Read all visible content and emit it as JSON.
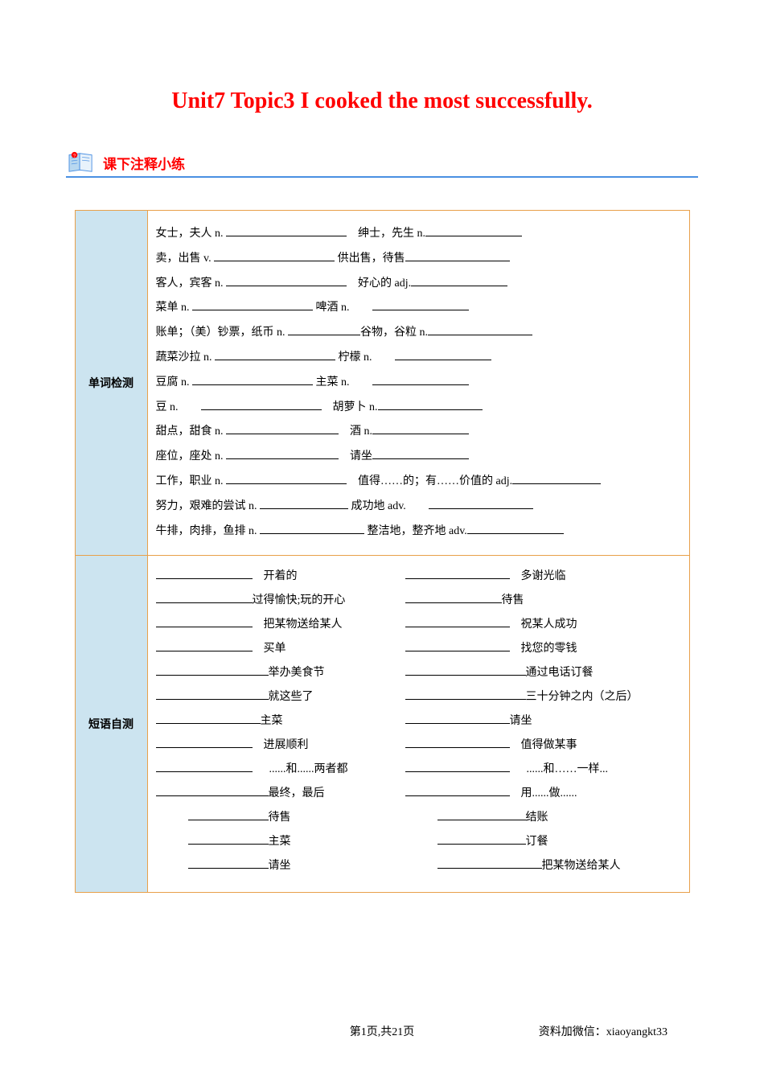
{
  "title": "Unit7 Topic3 I cooked the most successfully.",
  "section_label": "课下注释小练",
  "colors": {
    "title": "#ff0000",
    "rule": "#4a90e2",
    "table_border": "#e8a04a",
    "label_bg": "#cce4f0"
  },
  "vocab": {
    "label": "单词检测",
    "rows": [
      {
        "l": "女士，夫人 n.",
        "lbw": "w150",
        "r": "绅士，先生 n.",
        "gap": 4,
        "rbw": "w120"
      },
      {
        "l": "卖，出售 v.",
        "lbw": "w150",
        "r": "供出售，待售",
        "gap": 1,
        "rbw": "w130"
      },
      {
        "l": "客人，宾客 n.",
        "lbw": "w150",
        "r": "好心的 adj.",
        "gap": 4,
        "rbw": "w120"
      },
      {
        "l": "菜单 n.",
        "lbw": "w150",
        "r": "啤酒 n.",
        "gap": 1,
        "rbw": "w120",
        "rgap": 4
      },
      {
        "l": "账单；（美）钞票，纸币 n.",
        "lbw": "w90",
        "r": "谷物，谷粒 n.",
        "gap": 0,
        "rbw": "w130"
      },
      {
        "l": "蔬菜沙拉 n.",
        "lbw": "w150",
        "r": "柠檬 n.",
        "gap": 1,
        "rbw": "w120",
        "rgap": 4
      },
      {
        "l": "豆腐 n.",
        "lbw": "w150",
        "r": "主菜 n.",
        "gap": 1,
        "rbw": "w120",
        "rgap": 4
      },
      {
        "l": "豆 n.",
        "lbw": "w150",
        "r": "胡萝卜 n.",
        "gap": 4,
        "rbw": "w130",
        "lgap": 4
      },
      {
        "l": "甜点，甜食 n.",
        "lbw": "w140",
        "r": "酒 n.",
        "gap": 4,
        "rbw": "w120"
      },
      {
        "l": "座位，座处 n.",
        "lbw": "w140",
        "r": "请坐",
        "gap": 4,
        "rbw": "w120"
      },
      {
        "l": "工作，职业 n.",
        "lbw": "w150",
        "r": "值得……的；有……价值的 adj.",
        "gap": 4,
        "rbw": "w110"
      },
      {
        "l": "努力，艰难的尝试 n.",
        "lbw": "w110",
        "r": "成功地 adv.",
        "gap": 1,
        "rbw": "w130",
        "rgap": 4
      },
      {
        "l": "牛排，肉排，鱼排 n.",
        "lbw": "w130",
        "r": "整洁地，整齐地 adv.",
        "gap": 1,
        "rbw": "w120"
      }
    ]
  },
  "phrases": {
    "label": "短语自测",
    "rows": [
      {
        "lb": "w120",
        "lg": 2,
        "lt": "开着的",
        "rb": "w130",
        "rg": 2,
        "rt": "多谢光临"
      },
      {
        "lb": "w120",
        "lg": 0,
        "lt": "过得愉快;玩的开心",
        "rb": "w120",
        "rg": 0,
        "rt": "待售"
      },
      {
        "lb": "w120",
        "lg": 2,
        "lt": "把某物送给某人",
        "rb": "w130",
        "rg": 2,
        "rt": "祝某人成功"
      },
      {
        "lb": "w120",
        "lg": 2,
        "lt": "买单",
        "rb": "w130",
        "rg": 2,
        "rt": "找您的零钱"
      },
      {
        "lb": "w140",
        "lg": 0,
        "lt": "举办美食节",
        "rb": "w150",
        "rg": 0,
        "rt": "通过电话订餐"
      },
      {
        "lb": "w140",
        "lg": 0,
        "lt": "就这些了",
        "rb": "w150",
        "rg": 0,
        "rt": "三十分钟之内（之后）"
      },
      {
        "lb": "w130",
        "lg": 0,
        "lt": "主菜",
        "rb": "w130",
        "rg": 0,
        "rt": "请坐"
      },
      {
        "lb": "w120",
        "lg": 2,
        "lt": "进展顺利",
        "rb": "w130",
        "rg": 2,
        "rt": "值得做某事"
      },
      {
        "lb": "w120",
        "lg": 3,
        "lt": "......和......两者都",
        "rb": "w130",
        "rg": 3,
        "rt": "......和……一样..."
      },
      {
        "lb": "w140",
        "lg": 0,
        "lt": "最终，最后",
        "rb": "w130",
        "rg": 2,
        "rt": "用......做......"
      },
      {
        "lb": "w100",
        "lg": 0,
        "lt": "待售",
        "rb": "w110",
        "rg": 0,
        "rt": "结账",
        "indent": 1
      },
      {
        "lb": "w100",
        "lg": 0,
        "lt": "主菜",
        "rb": "w110",
        "rg": 0,
        "rt": "订餐",
        "indent": 1
      },
      {
        "lb": "w100",
        "lg": 0,
        "lt": "请坐",
        "rb": "w130",
        "rg": 0,
        "rt": "把某物送给某人",
        "indent": 1
      }
    ]
  },
  "footer": {
    "center": "第1页,共21页",
    "right": "资料加微信：xiaoyangkt33"
  }
}
